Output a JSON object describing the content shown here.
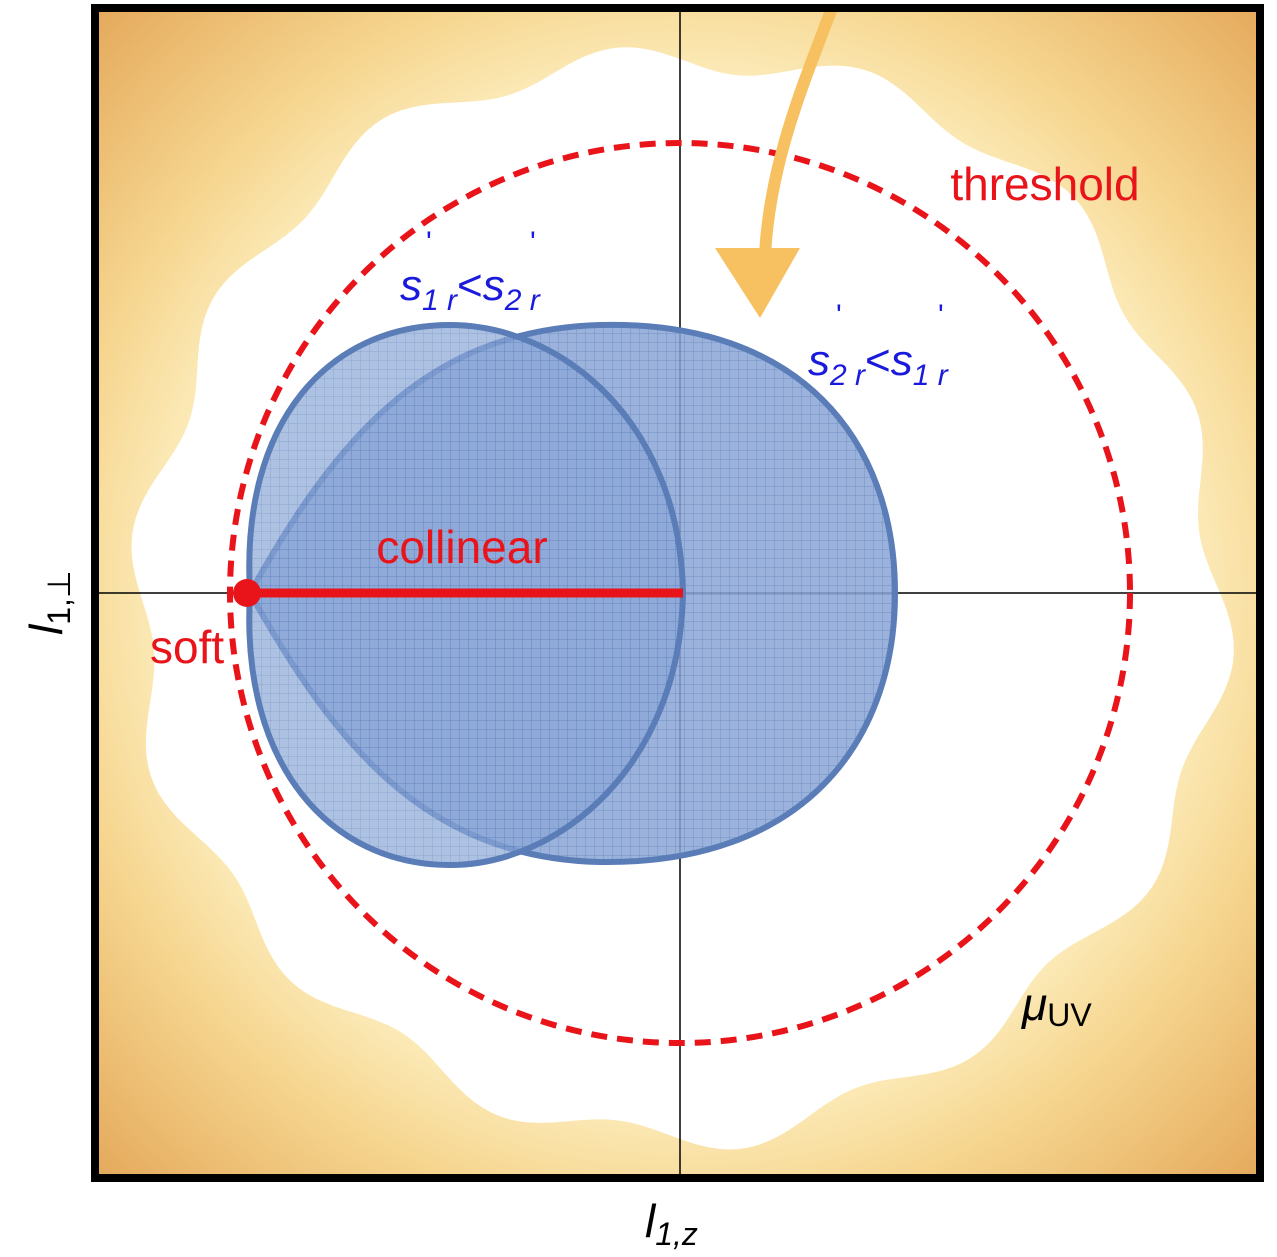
{
  "axes": {
    "x_label": {
      "base": "l",
      "sub": "1,z"
    },
    "y_label": {
      "base": "l",
      "sub": "1,⊥"
    }
  },
  "labels": {
    "threshold": "threshold",
    "collinear": "collinear",
    "soft": "soft",
    "uv": {
      "base": "μ",
      "sub": "UV"
    },
    "region_left": {
      "lhs": {
        "prime": "'",
        "base": "s",
        "sub": "1 r"
      },
      "op": "<",
      "rhs": {
        "prime": "'",
        "base": "s",
        "sub": "2 r"
      }
    },
    "region_right": {
      "lhs": {
        "prime": "'",
        "base": "s",
        "sub": "2 r"
      },
      "op": "<",
      "rhs": {
        "prime": "'",
        "base": "s",
        "sub": "1 r"
      }
    }
  }
}
